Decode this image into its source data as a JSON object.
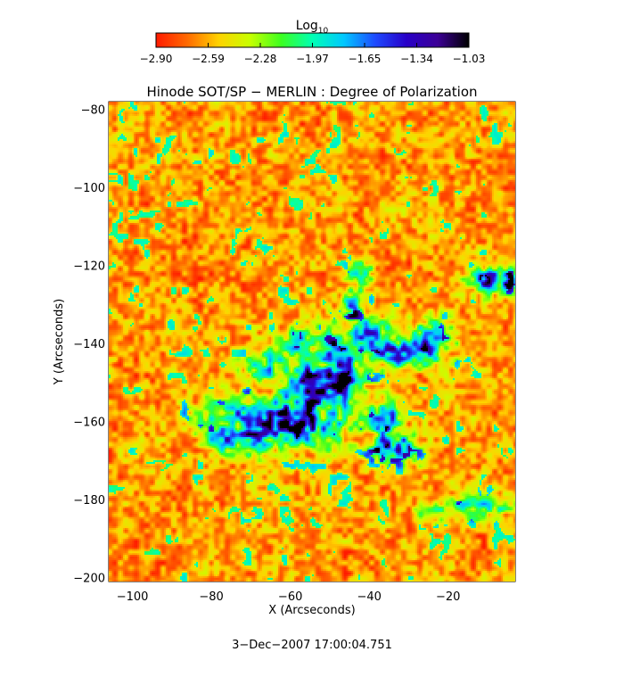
{
  "colorbar": {
    "title_base": "Log",
    "title_subscript": "10",
    "tick_labels": [
      "−2.90",
      "−2.59",
      "−2.28",
      "−1.97",
      "−1.65",
      "−1.34",
      "−1.03"
    ],
    "range": [
      -2.9,
      -1.03
    ],
    "colormap": "rainbow (red → yellow → green → cyan → blue → purple → black)",
    "stops": [
      "#ff1a00",
      "#ff6a00",
      "#ffd200",
      "#c8ff00",
      "#3cff20",
      "#00ffb4",
      "#00c8ff",
      "#1e4bff",
      "#2800c8",
      "#3c0096",
      "#000000"
    ]
  },
  "plot": {
    "title": "Hinode SOT/SP − MERLIN : Degree of Polarization",
    "xlabel": "X (Arcseconds)",
    "ylabel": "Y (Arcseconds)",
    "xlim": [
      -106,
      -3
    ],
    "ylim": [
      -201,
      -78
    ],
    "xticks": [
      -100,
      -80,
      -60,
      -40,
      -20
    ],
    "xtick_labels": [
      "−100",
      "−80",
      "−60",
      "−40",
      "−20"
    ],
    "yticks": [
      -80,
      -100,
      -120,
      -140,
      -160,
      -180,
      -200
    ],
    "ytick_labels": [
      "−80",
      "−100",
      "−120",
      "−140",
      "−160",
      "−180",
      "−200"
    ],
    "description_colors": {
      "background": "#ff2a00",
      "high_polarization": "#1e1eff"
    }
  },
  "timestamp": "3−Dec−2007 17:00:04.751"
}
